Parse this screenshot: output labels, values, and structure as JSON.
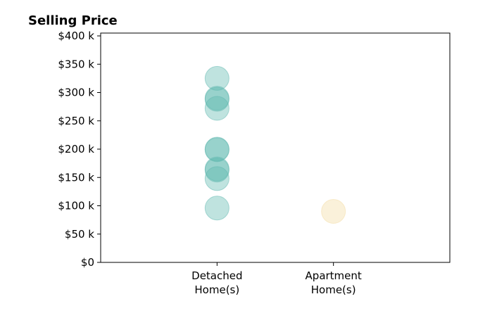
{
  "chart_data": {
    "type": "scatter",
    "title": "Selling Price",
    "xlabel": "",
    "ylabel": "",
    "categories": [
      "Detached\nHome(s)",
      "Apartment\nHome(s)"
    ],
    "ylim": [
      0,
      405000
    ],
    "y_ticks": [
      0,
      50000,
      100000,
      150000,
      200000,
      250000,
      300000,
      350000,
      400000
    ],
    "y_tick_labels": [
      "$0",
      "$50 k",
      "$100 k",
      "$150 k",
      "$200 k",
      "$250 k",
      "$300 k",
      "$350 k",
      "$400 k"
    ],
    "grid": false,
    "series": [
      {
        "category": "Detached\nHome(s)",
        "color": "#5fb8b0",
        "values": [
          325000,
          290000,
          288000,
          272000,
          200000,
          199000,
          165000,
          163000,
          148000,
          96000
        ]
      },
      {
        "category": "Apartment\nHome(s)",
        "color": "#f3dca2",
        "values": [
          90000
        ]
      }
    ]
  }
}
